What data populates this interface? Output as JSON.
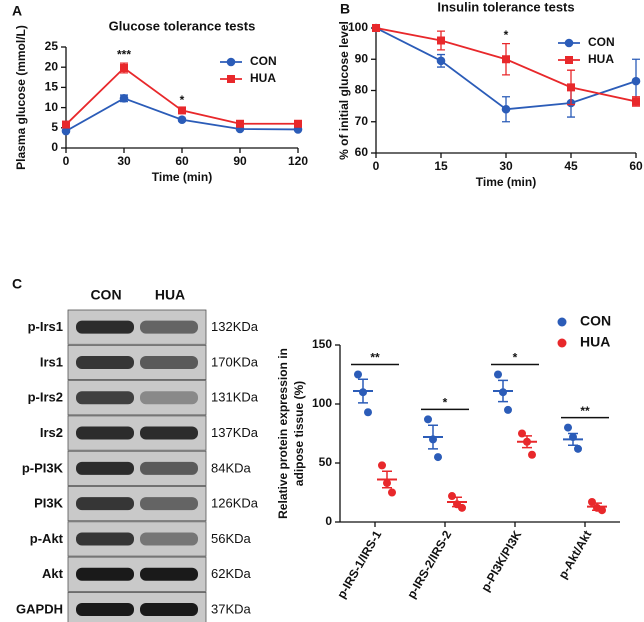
{
  "panels": [
    "A",
    "B",
    "C"
  ],
  "chart_data": [
    {
      "type": "line",
      "title": "Glucose tolerance tests",
      "xlabel": "Time (min)",
      "ylabel": "Plasma glucose (mmol/L)",
      "x": [
        0,
        30,
        60,
        90,
        120
      ],
      "xlim": [
        0,
        120
      ],
      "xticks": [
        0,
        30,
        60,
        90,
        120
      ],
      "ylim": [
        0,
        25
      ],
      "yticks": [
        0,
        5,
        10,
        15,
        20,
        25
      ],
      "legend": "upper right",
      "series": [
        {
          "name": "CON",
          "color": "#2b5cb8",
          "marker": "circle",
          "values": [
            4.2,
            12.3,
            7,
            4.7,
            4.6
          ],
          "errors": [
            0.3,
            0.8,
            0.3,
            0.2,
            0.2
          ]
        },
        {
          "name": "HUA",
          "color": "#e8282b",
          "marker": "square",
          "values": [
            5.8,
            19.8,
            9.3,
            6,
            6
          ],
          "errors": [
            0.3,
            1.2,
            0.4,
            0.2,
            0.2
          ]
        }
      ],
      "annotations": [
        {
          "x": 30,
          "text": "***"
        },
        {
          "x": 60,
          "text": "*"
        }
      ]
    },
    {
      "type": "line",
      "title": "Insulin tolerance tests",
      "xlabel": "Time (min)",
      "ylabel": "% of initial glucose level",
      "x": [
        0,
        15,
        30,
        45,
        60
      ],
      "xlim": [
        0,
        60
      ],
      "xticks": [
        0,
        15,
        30,
        45,
        60
      ],
      "ylim": [
        60,
        100
      ],
      "yticks": [
        60,
        70,
        80,
        90,
        100
      ],
      "legend": "upper right",
      "series": [
        {
          "name": "CON",
          "color": "#2b5cb8",
          "marker": "circle",
          "values": [
            100,
            89.5,
            74,
            76,
            83
          ],
          "errors": [
            0,
            2,
            4,
            4.5,
            7
          ]
        },
        {
          "name": "HUA",
          "color": "#e8282b",
          "marker": "square",
          "values": [
            100,
            96,
            90,
            81,
            76.5
          ],
          "errors": [
            0,
            3,
            5,
            5.5,
            1.5
          ]
        }
      ],
      "annotations": [
        {
          "x": 30,
          "text": "*"
        }
      ]
    },
    {
      "type": "dot",
      "ylabel": [
        "Relative protein expression in",
        "adipose tissue (%)"
      ],
      "categories": [
        "p-IRS-1/IRS-1",
        "p-IRS-2/IRS-2",
        "p-PI3K/PI3K",
        "p-Akt/Akt"
      ],
      "ylim": [
        0,
        150
      ],
      "yticks": [
        0,
        50,
        100,
        150
      ],
      "legend": "upper right",
      "series": [
        {
          "name": "CON",
          "color": "#2b5cb8",
          "values": [
            [
              125,
              110,
              93
            ],
            [
              87,
              70,
              55
            ],
            [
              125,
              110,
              95
            ],
            [
              80,
              72,
              62
            ]
          ],
          "means": [
            111,
            72,
            111,
            70
          ],
          "sem": [
            10,
            10,
            9,
            5
          ]
        },
        {
          "name": "HUA",
          "color": "#e8282b",
          "values": [
            [
              48,
              33,
              25
            ],
            [
              22,
              15,
              12
            ],
            [
              75,
              68,
              57
            ],
            [
              17,
              12,
              10
            ]
          ],
          "means": [
            36,
            17,
            68,
            13
          ],
          "sem": [
            7,
            4,
            5,
            3
          ]
        }
      ],
      "significance": [
        "**",
        "*",
        "*",
        "**"
      ]
    }
  ],
  "blot": {
    "columns": [
      "CON",
      "HUA"
    ],
    "rows": [
      {
        "label": "p-Irs1",
        "size": "132KDa"
      },
      {
        "label": "Irs1",
        "size": "170KDa"
      },
      {
        "label": "p-Irs2",
        "size": "131KDa"
      },
      {
        "label": "Irs2",
        "size": "137KDa"
      },
      {
        "label": "p-PI3K",
        "size": "84KDa"
      },
      {
        "label": "PI3K",
        "size": "126KDa"
      },
      {
        "label": "p-Akt",
        "size": "56KDa"
      },
      {
        "label": "Akt",
        "size": "62KDa"
      },
      {
        "label": "GAPDH",
        "size": "37KDa"
      }
    ]
  }
}
